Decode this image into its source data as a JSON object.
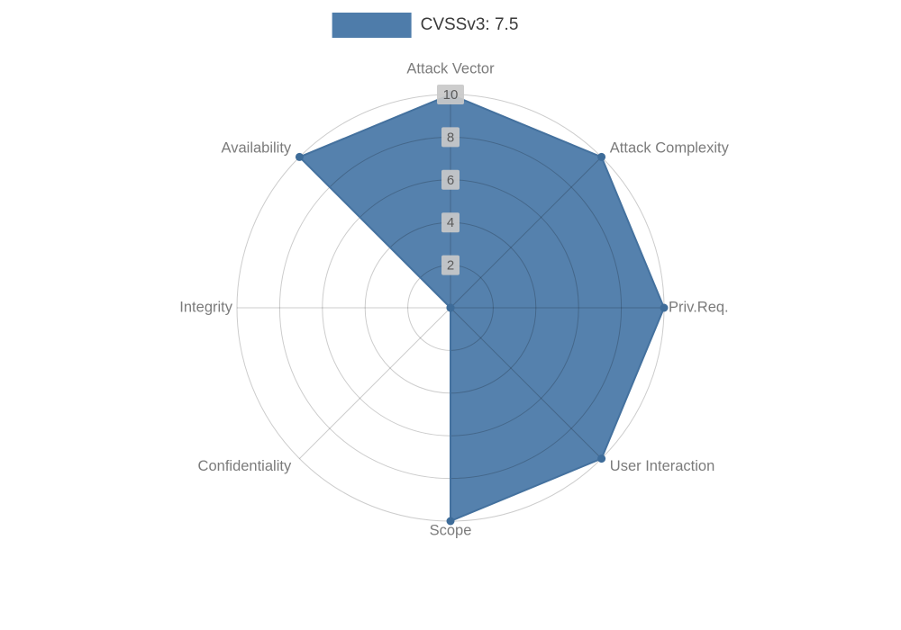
{
  "legend": {
    "label": "CVSSv3: 7.5",
    "swatch_color": "#4e7caa"
  },
  "chart_data": {
    "type": "radar",
    "title": "CVSSv3: 7.5",
    "categories": [
      "Attack Vector",
      "Attack Complexity",
      "Priv.Req.",
      "User Interaction",
      "Scope",
      "Confidentiality",
      "Integrity",
      "Availability"
    ],
    "series": [
      {
        "name": "CVSSv3: 7.5",
        "values": [
          10,
          10,
          10,
          10,
          10,
          0,
          0,
          10
        ]
      }
    ],
    "ticks": [
      2,
      4,
      6,
      8,
      10
    ],
    "rmax": 10,
    "grid_shape": "circular",
    "legend_position": "top",
    "colors": {
      "fill": "#4e7caa",
      "border": "#44719e",
      "point": "#3e6c99",
      "grid": "rgba(0,0,0,0.20)",
      "axis_label": "#7b7b7b",
      "tick_label": "#5a5a5a",
      "tick_backdrop": "#c9c9c9",
      "legend_text": "#3a3a3a",
      "background": "#ffffff"
    }
  }
}
